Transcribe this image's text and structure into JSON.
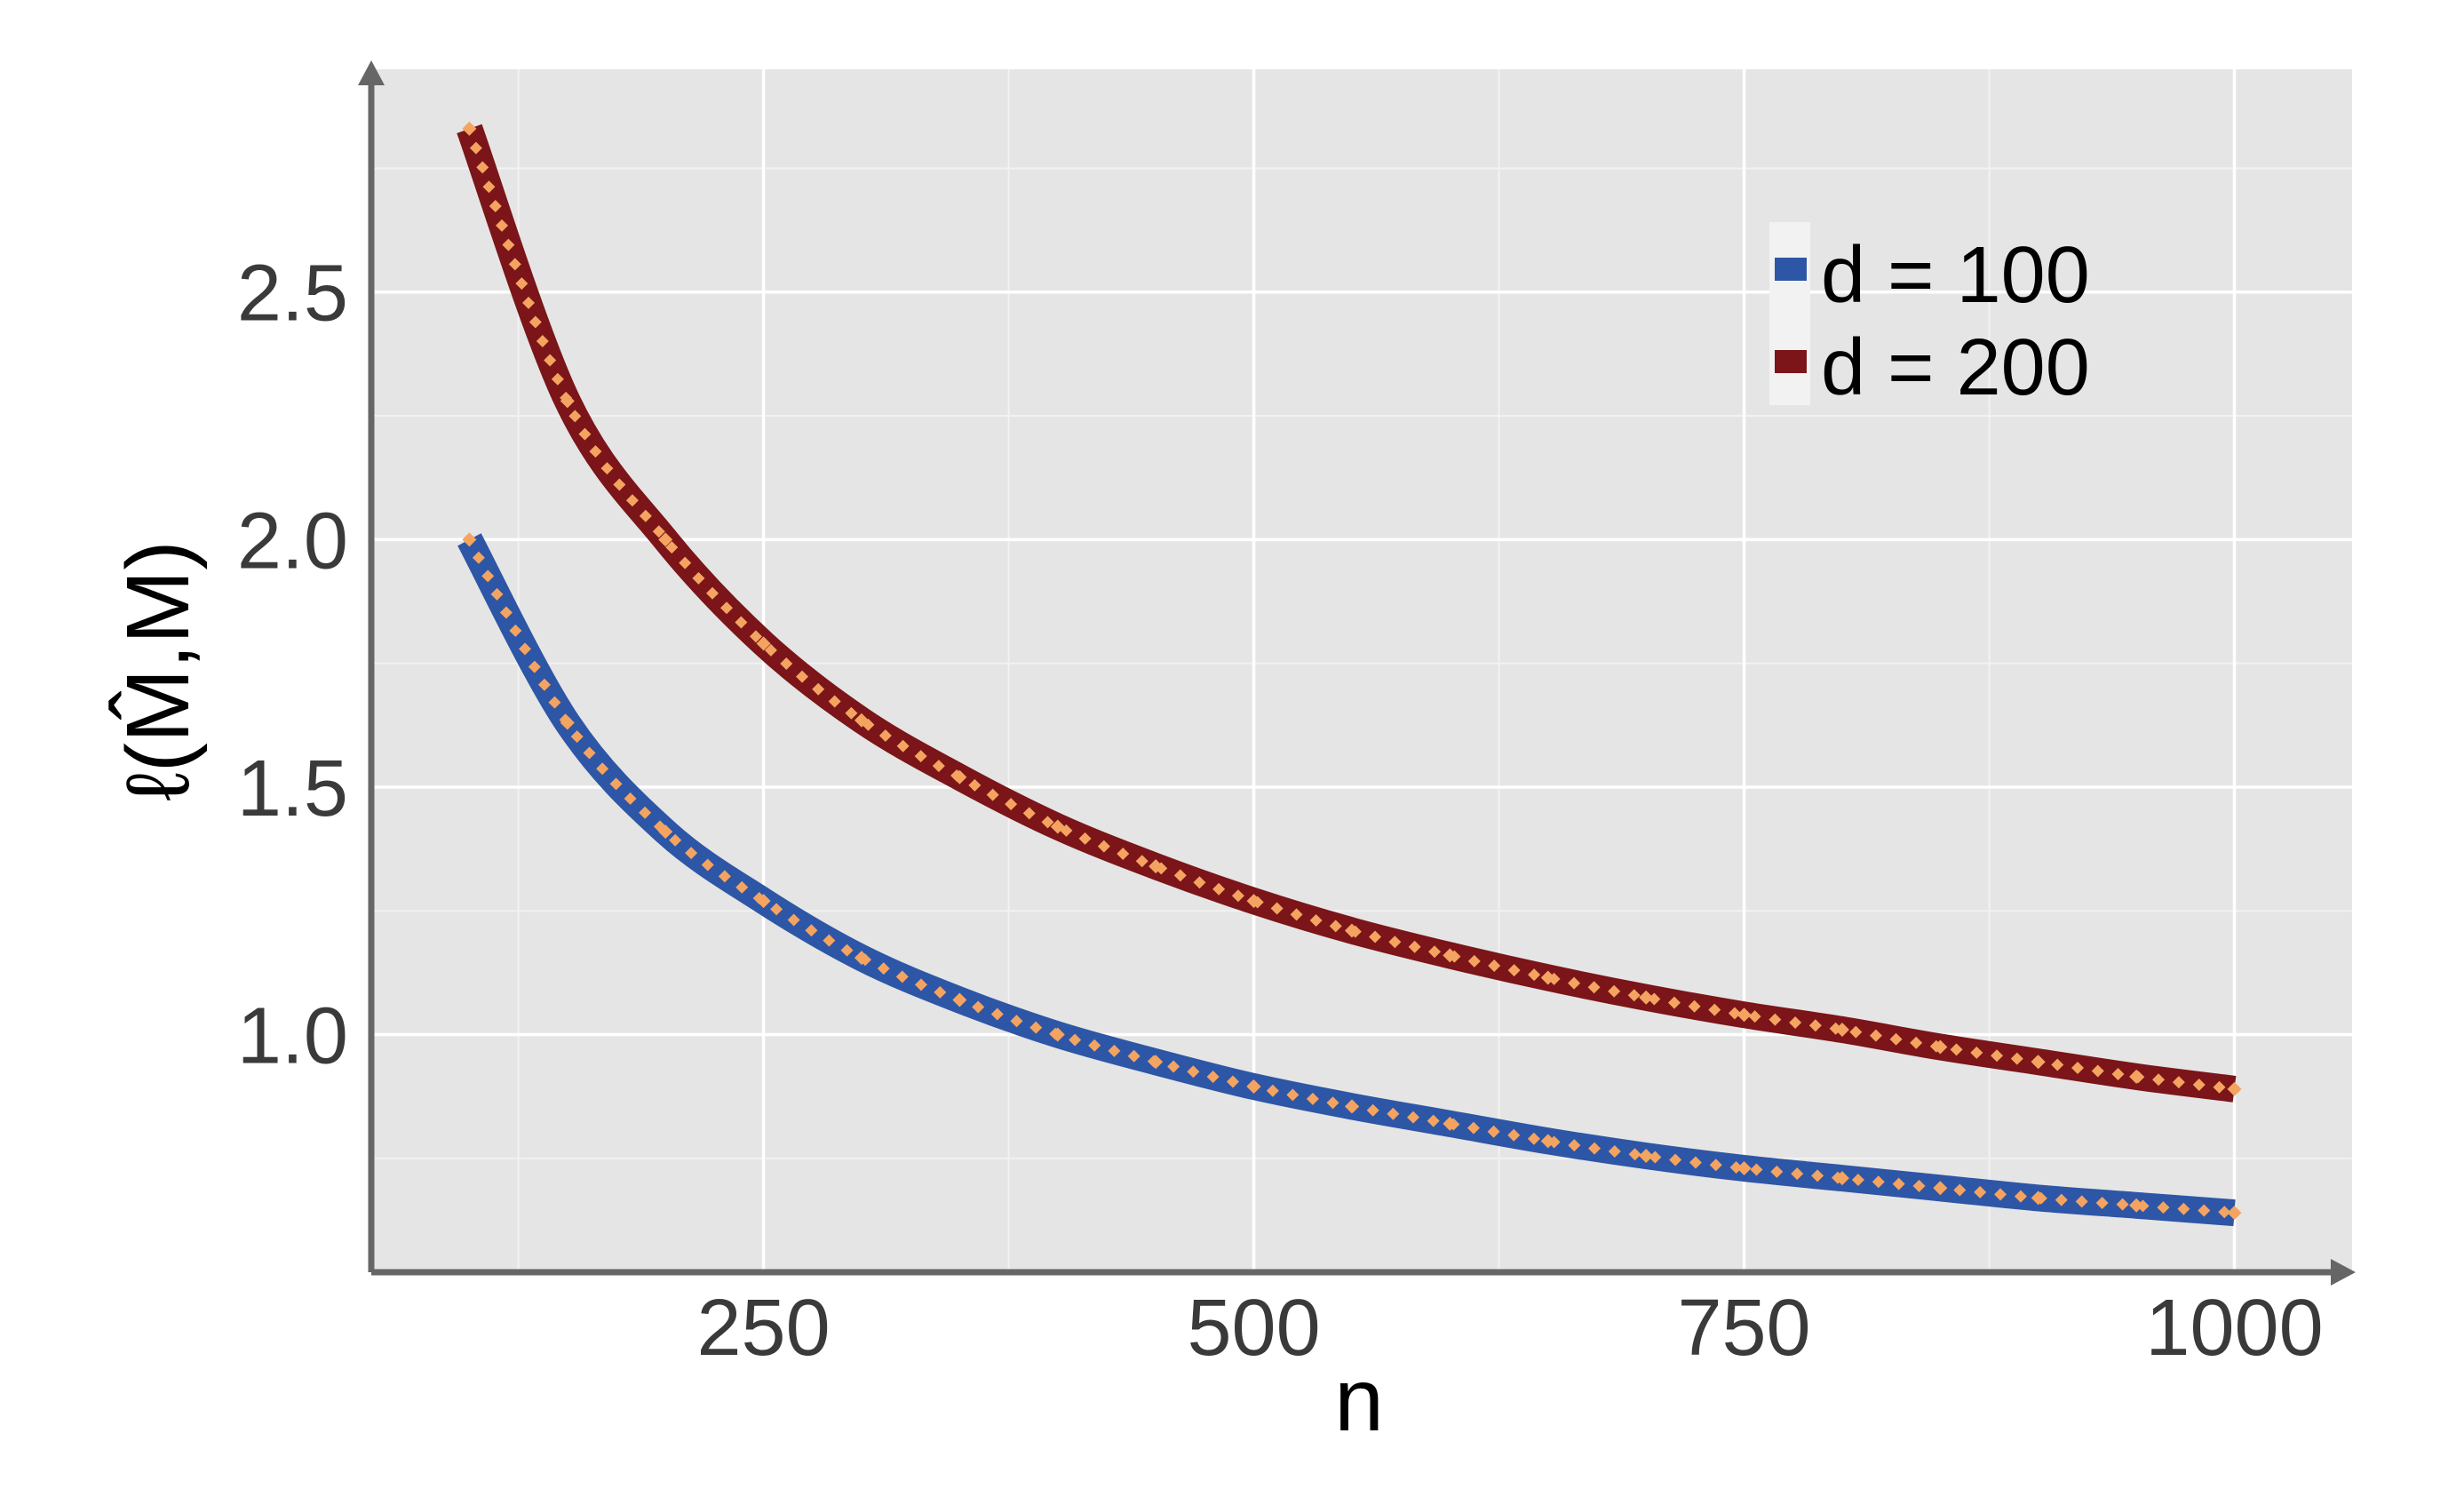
{
  "chart_data": {
    "type": "line",
    "xlabel": "n",
    "ylabel": "ℓ(M̂,M)",
    "xlim": [
      50,
      1060
    ],
    "ylim": [
      0.52,
      2.95
    ],
    "x_ticks": [
      250,
      500,
      750,
      1000
    ],
    "x_tick_labels": [
      "250",
      "500",
      "750",
      "1000"
    ],
    "y_ticks": [
      1.0,
      1.5,
      2.0,
      2.5
    ],
    "y_tick_labels": [
      "1.0",
      "1.5",
      "2.0",
      "2.5"
    ],
    "grid": true,
    "legend_position": "top-right",
    "marker_color": "#f4a460",
    "x": [
      100,
      150,
      200,
      250,
      300,
      350,
      400,
      450,
      500,
      550,
      600,
      650,
      700,
      750,
      800,
      850,
      900,
      950,
      1000
    ],
    "series": [
      {
        "name": "d = 100",
        "color": "#2e56a6",
        "values": [
          2.0,
          1.63,
          1.41,
          1.27,
          1.155,
          1.07,
          1.0,
          0.945,
          0.895,
          0.855,
          0.82,
          0.785,
          0.755,
          0.73,
          0.71,
          0.69,
          0.67,
          0.655,
          0.64
        ]
      },
      {
        "name": "d = 200",
        "color": "#7b1519",
        "values": [
          2.83,
          2.28,
          2.0,
          1.79,
          1.635,
          1.52,
          1.42,
          1.34,
          1.27,
          1.21,
          1.16,
          1.115,
          1.075,
          1.04,
          1.01,
          0.975,
          0.945,
          0.915,
          0.89
        ]
      }
    ]
  }
}
